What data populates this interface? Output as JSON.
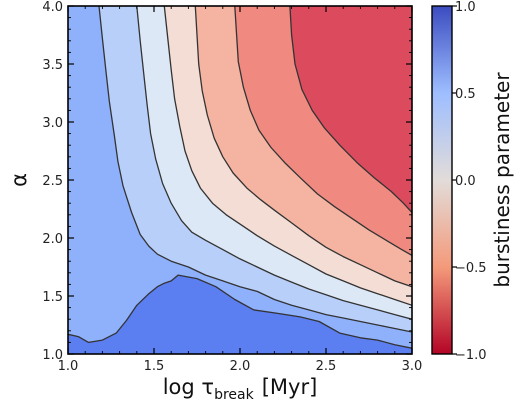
{
  "chart_data": {
    "type": "contour",
    "xlabel": {
      "main": "log τ",
      "sub": "break",
      "unit": "[Myr]"
    },
    "ylabel": "α",
    "colorbar_label": "burstiness parameter",
    "xlim": [
      1.0,
      3.0
    ],
    "ylim": [
      1.0,
      4.0
    ],
    "x_ticks": [
      "1.0",
      "1.5",
      "2.0",
      "2.5",
      "3.0"
    ],
    "y_ticks": [
      "1.0",
      "1.5",
      "2.0",
      "2.5",
      "3.0",
      "3.5",
      "4.0"
    ],
    "colorbar_range": [
      -1.0,
      1.0
    ],
    "colorbar_ticks": [
      "1.0",
      "0.5",
      "0.0",
      "−0.5",
      "−1.0"
    ],
    "colormap": "coolwarm_r",
    "band_colors": [
      "#5b7ef0",
      "#8fb1fc",
      "#b8d0f9",
      "#dde8f6",
      "#f4ddd5",
      "#f5b4a2",
      "#f08a80",
      "#dc4a5e"
    ],
    "contour_line_color": "#333333",
    "contours": [
      {
        "level": 0.75,
        "points": [
          [
            1.0,
            1.17
          ],
          [
            1.06,
            1.15
          ],
          [
            1.12,
            1.1
          ],
          [
            1.2,
            1.12
          ],
          [
            1.28,
            1.18
          ],
          [
            1.34,
            1.29
          ],
          [
            1.4,
            1.42
          ],
          [
            1.47,
            1.52
          ],
          [
            1.52,
            1.58
          ],
          [
            1.56,
            1.61
          ],
          [
            1.6,
            1.63
          ],
          [
            1.64,
            1.68
          ],
          [
            1.75,
            1.65
          ],
          [
            1.86,
            1.58
          ],
          [
            1.97,
            1.47
          ],
          [
            2.08,
            1.38
          ],
          [
            2.22,
            1.35
          ],
          [
            2.35,
            1.32
          ],
          [
            2.46,
            1.28
          ],
          [
            2.58,
            1.18
          ],
          [
            2.7,
            1.14
          ],
          [
            2.8,
            1.12
          ],
          [
            2.9,
            1.08
          ],
          [
            3.0,
            1.05
          ]
        ]
      },
      {
        "level": 0.5,
        "points": [
          [
            1.18,
            4.0
          ],
          [
            1.2,
            3.72
          ],
          [
            1.22,
            3.45
          ],
          [
            1.24,
            3.18
          ],
          [
            1.27,
            2.88
          ],
          [
            1.29,
            2.66
          ],
          [
            1.32,
            2.45
          ],
          [
            1.37,
            2.22
          ],
          [
            1.42,
            2.03
          ],
          [
            1.47,
            1.93
          ],
          [
            1.52,
            1.86
          ],
          [
            1.6,
            1.8
          ],
          [
            1.7,
            1.75
          ],
          [
            1.8,
            1.68
          ],
          [
            1.9,
            1.63
          ],
          [
            2.0,
            1.58
          ],
          [
            2.1,
            1.54
          ],
          [
            2.2,
            1.47
          ],
          [
            2.3,
            1.42
          ],
          [
            2.4,
            1.38
          ],
          [
            2.5,
            1.34
          ],
          [
            2.6,
            1.31
          ],
          [
            2.7,
            1.28
          ],
          [
            2.8,
            1.25
          ],
          [
            2.9,
            1.22
          ],
          [
            3.0,
            1.19
          ]
        ]
      },
      {
        "level": 0.25,
        "points": [
          [
            1.4,
            4.0
          ],
          [
            1.42,
            3.7
          ],
          [
            1.44,
            3.42
          ],
          [
            1.46,
            3.15
          ],
          [
            1.48,
            2.9
          ],
          [
            1.51,
            2.68
          ],
          [
            1.55,
            2.47
          ],
          [
            1.6,
            2.3
          ],
          [
            1.66,
            2.15
          ],
          [
            1.72,
            2.05
          ],
          [
            1.8,
            1.98
          ],
          [
            1.9,
            1.9
          ],
          [
            2.0,
            1.82
          ],
          [
            2.1,
            1.75
          ],
          [
            2.2,
            1.68
          ],
          [
            2.3,
            1.62
          ],
          [
            2.4,
            1.56
          ],
          [
            2.5,
            1.51
          ],
          [
            2.6,
            1.46
          ],
          [
            2.7,
            1.42
          ],
          [
            2.8,
            1.38
          ],
          [
            2.9,
            1.34
          ],
          [
            3.0,
            1.3
          ]
        ]
      },
      {
        "level": 0.0,
        "points": [
          [
            1.56,
            4.0
          ],
          [
            1.58,
            3.72
          ],
          [
            1.6,
            3.45
          ],
          [
            1.62,
            3.2
          ],
          [
            1.65,
            2.96
          ],
          [
            1.68,
            2.75
          ],
          [
            1.72,
            2.58
          ],
          [
            1.77,
            2.43
          ],
          [
            1.84,
            2.3
          ],
          [
            1.92,
            2.2
          ],
          [
            2.0,
            2.12
          ],
          [
            2.1,
            2.02
          ],
          [
            2.2,
            1.93
          ],
          [
            2.3,
            1.85
          ],
          [
            2.4,
            1.77
          ],
          [
            2.5,
            1.69
          ],
          [
            2.6,
            1.63
          ],
          [
            2.7,
            1.57
          ],
          [
            2.8,
            1.52
          ],
          [
            2.9,
            1.47
          ],
          [
            3.0,
            1.42
          ]
        ]
      },
      {
        "level": -0.25,
        "points": [
          [
            1.74,
            4.0
          ],
          [
            1.75,
            3.75
          ],
          [
            1.76,
            3.5
          ],
          [
            1.78,
            3.27
          ],
          [
            1.81,
            3.06
          ],
          [
            1.85,
            2.86
          ],
          [
            1.9,
            2.7
          ],
          [
            1.96,
            2.56
          ],
          [
            2.04,
            2.43
          ],
          [
            2.12,
            2.33
          ],
          [
            2.2,
            2.24
          ],
          [
            2.3,
            2.13
          ],
          [
            2.4,
            2.02
          ],
          [
            2.5,
            1.92
          ],
          [
            2.6,
            1.84
          ],
          [
            2.7,
            1.77
          ],
          [
            2.8,
            1.7
          ],
          [
            2.9,
            1.63
          ],
          [
            3.0,
            1.58
          ]
        ]
      },
      {
        "level": -0.5,
        "points": [
          [
            1.97,
            4.0
          ],
          [
            1.98,
            3.75
          ],
          [
            1.99,
            3.52
          ],
          [
            2.02,
            3.3
          ],
          [
            2.06,
            3.1
          ],
          [
            2.11,
            2.93
          ],
          [
            2.18,
            2.78
          ],
          [
            2.26,
            2.65
          ],
          [
            2.35,
            2.52
          ],
          [
            2.45,
            2.38
          ],
          [
            2.55,
            2.27
          ],
          [
            2.65,
            2.17
          ],
          [
            2.75,
            2.07
          ],
          [
            2.85,
            1.98
          ],
          [
            2.94,
            1.9
          ],
          [
            3.0,
            1.85
          ]
        ]
      },
      {
        "level": -0.75,
        "points": [
          [
            2.29,
            4.0
          ],
          [
            2.3,
            3.75
          ],
          [
            2.32,
            3.5
          ],
          [
            2.36,
            3.28
          ],
          [
            2.42,
            3.1
          ],
          [
            2.49,
            2.95
          ],
          [
            2.58,
            2.8
          ],
          [
            2.68,
            2.65
          ],
          [
            2.78,
            2.52
          ],
          [
            2.88,
            2.4
          ],
          [
            2.95,
            2.3
          ],
          [
            3.0,
            2.22
          ]
        ]
      }
    ]
  }
}
